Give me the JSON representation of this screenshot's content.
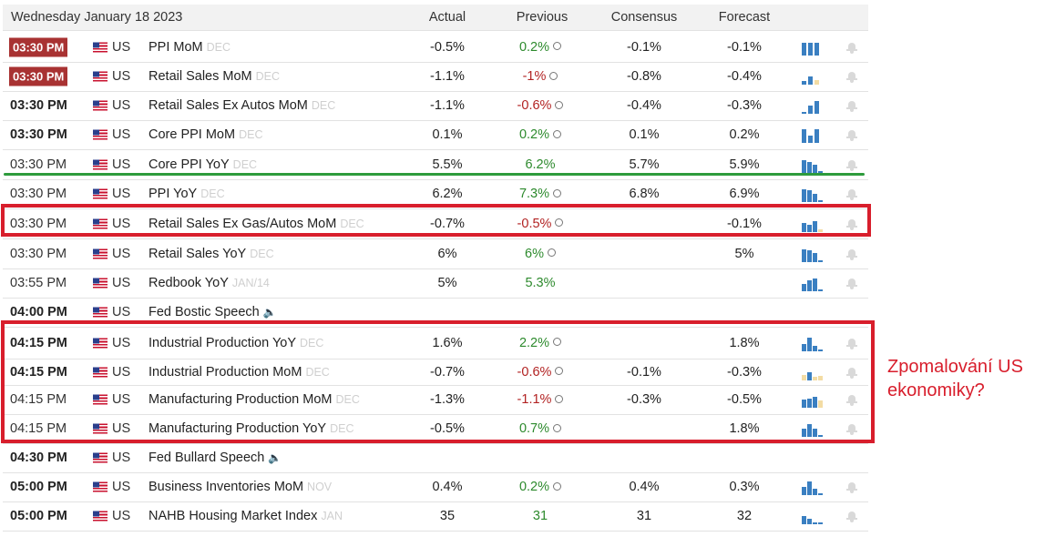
{
  "calendar": {
    "date": "Wednesday January 18 2023",
    "columns": {
      "actual": "Actual",
      "previous": "Previous",
      "consensus": "Consensus",
      "forecast": "Forecast"
    },
    "rows": [
      {
        "time": "03:30 PM",
        "time_style": "badge",
        "country": "US",
        "event": "PPI MoM",
        "period": "DEC",
        "actual": "-0.5%",
        "previous": "0.2%",
        "prev_color": "green",
        "revised": true,
        "consensus": "-0.1%",
        "forecast": "-0.1%",
        "spark": [
          0.85,
          0.85,
          0.85
        ],
        "spark_colors": [
          "#3a7fc1",
          "#3a7fc1",
          "#3a7fc1"
        ]
      },
      {
        "time": "03:30 PM",
        "time_style": "badge",
        "country": "US",
        "event": "Retail Sales MoM",
        "period": "DEC",
        "actual": "-1.1%",
        "previous": "-1%",
        "prev_color": "red",
        "revised": true,
        "consensus": "-0.8%",
        "forecast": "-0.4%",
        "spark": [
          0.25,
          0.55,
          0.3
        ],
        "spark_colors": [
          "#3a7fc1",
          "#3a7fc1",
          "#f3dca4"
        ]
      },
      {
        "time": "03:30 PM",
        "time_style": "bold",
        "country": "US",
        "event": "Retail Sales Ex Autos MoM",
        "period": "DEC",
        "actual": "-1.1%",
        "previous": "-0.6%",
        "prev_color": "red",
        "revised": true,
        "consensus": "-0.4%",
        "forecast": "-0.3%",
        "spark": [
          0.1,
          0.55,
          0.85
        ],
        "spark_colors": [
          "#3a7fc1",
          "#3a7fc1",
          "#3a7fc1"
        ]
      },
      {
        "time": "03:30 PM",
        "time_style": "bold",
        "country": "US",
        "event": "Core PPI MoM",
        "period": "DEC",
        "actual": "0.1%",
        "previous": "0.2%",
        "prev_color": "green",
        "revised": true,
        "consensus": "0.1%",
        "forecast": "0.2%",
        "spark": [
          0.9,
          0.45,
          0.9
        ],
        "spark_colors": [
          "#3a7fc1",
          "#3a7fc1",
          "#3a7fc1"
        ]
      },
      {
        "time": "03:30 PM",
        "time_style": "normal",
        "country": "US",
        "event": "Core PPI YoY",
        "period": "DEC",
        "actual": "5.5%",
        "previous": "6.2%",
        "prev_color": "green",
        "revised": false,
        "consensus": "5.7%",
        "forecast": "5.9%",
        "spark": [
          0.85,
          0.7,
          0.5,
          0.1
        ],
        "spark_colors": [
          "#3a7fc1",
          "#3a7fc1",
          "#3a7fc1",
          "#3a7fc1"
        ]
      },
      {
        "time": "03:30 PM",
        "time_style": "normal",
        "country": "US",
        "event": "PPI YoY",
        "period": "DEC",
        "actual": "6.2%",
        "previous": "7.3%",
        "prev_color": "green",
        "revised": true,
        "consensus": "6.8%",
        "forecast": "6.9%",
        "spark": [
          0.85,
          0.75,
          0.55,
          0.1
        ],
        "spark_colors": [
          "#3a7fc1",
          "#3a7fc1",
          "#3a7fc1",
          "#3a7fc1"
        ]
      },
      {
        "time": "03:30 PM",
        "time_style": "normal",
        "country": "US",
        "event": "Retail Sales Ex Gas/Autos MoM",
        "period": "DEC",
        "actual": "-0.7%",
        "previous": "-0.5%",
        "prev_color": "red",
        "revised": true,
        "consensus": "",
        "forecast": "-0.1%",
        "spark": [
          0.6,
          0.45,
          0.7,
          0.2
        ],
        "spark_colors": [
          "#3a7fc1",
          "#3a7fc1",
          "#3a7fc1",
          "#f3dca4"
        ]
      },
      {
        "time": "03:30 PM",
        "time_style": "normal",
        "country": "US",
        "event": "Retail Sales YoY",
        "period": "DEC",
        "actual": "6%",
        "previous": "6%",
        "prev_color": "green",
        "revised": true,
        "consensus": "",
        "forecast": "5%",
        "spark": [
          0.85,
          0.75,
          0.6,
          0.1
        ],
        "spark_colors": [
          "#3a7fc1",
          "#3a7fc1",
          "#3a7fc1",
          "#3a7fc1"
        ]
      },
      {
        "time": "03:55 PM",
        "time_style": "normal",
        "country": "US",
        "event": "Redbook YoY",
        "period": "JAN/14",
        "actual": "5%",
        "previous": "5.3%",
        "prev_color": "green",
        "revised": false,
        "consensus": "",
        "forecast": "",
        "spark": [
          0.45,
          0.7,
          0.85,
          0.1
        ],
        "spark_colors": [
          "#3a7fc1",
          "#3a7fc1",
          "#3a7fc1",
          "#3a7fc1"
        ]
      },
      {
        "time": "04:00 PM",
        "time_style": "bold",
        "country": "US",
        "event": "Fed Bostic Speech",
        "period": "",
        "speech": true,
        "actual": "",
        "previous": "",
        "prev_color": "",
        "revised": false,
        "consensus": "",
        "forecast": "",
        "spark": [],
        "spark_colors": []
      },
      {
        "time": "04:15 PM",
        "time_style": "bold",
        "country": "US",
        "event": "Industrial Production YoY",
        "period": "DEC",
        "actual": "1.6%",
        "previous": "2.2%",
        "prev_color": "green",
        "revised": true,
        "consensus": "",
        "forecast": "1.8%",
        "spark": [
          0.45,
          0.9,
          0.35,
          0.1
        ],
        "spark_colors": [
          "#3a7fc1",
          "#3a7fc1",
          "#3a7fc1",
          "#3a7fc1"
        ]
      },
      {
        "time": "04:15 PM",
        "time_style": "bold",
        "country": "US",
        "event": "Industrial Production MoM",
        "period": "DEC",
        "actual": "-0.7%",
        "previous": "-0.6%",
        "prev_color": "red",
        "revised": true,
        "consensus": "-0.1%",
        "forecast": "-0.3%",
        "spark": [
          0.35,
          0.55,
          0.25,
          0.3
        ],
        "spark_colors": [
          "#f3dca4",
          "#3a7fc1",
          "#f3dca4",
          "#f3dca4"
        ]
      },
      {
        "time": "04:15 PM",
        "time_style": "normal",
        "country": "US",
        "event": "Manufacturing Production MoM",
        "period": "DEC",
        "actual": "-1.3%",
        "previous": "-1.1%",
        "prev_color": "red",
        "revised": true,
        "consensus": "-0.3%",
        "forecast": "-0.5%",
        "spark": [
          0.55,
          0.6,
          0.7,
          0.45
        ],
        "spark_colors": [
          "#3a7fc1",
          "#3a7fc1",
          "#3a7fc1",
          "#f3dca4"
        ]
      },
      {
        "time": "04:15 PM",
        "time_style": "normal",
        "country": "US",
        "event": "Manufacturing Production YoY",
        "period": "DEC",
        "actual": "-0.5%",
        "previous": "0.7%",
        "prev_color": "green",
        "revised": true,
        "consensus": "",
        "forecast": "1.8%",
        "spark": [
          0.55,
          0.85,
          0.5,
          0.1
        ],
        "spark_colors": [
          "#3a7fc1",
          "#3a7fc1",
          "#3a7fc1",
          "#3a7fc1"
        ]
      },
      {
        "time": "04:30 PM",
        "time_style": "bold",
        "country": "US",
        "event": "Fed Bullard Speech",
        "period": "",
        "speech": true,
        "actual": "",
        "previous": "",
        "prev_color": "",
        "revised": false,
        "consensus": "",
        "forecast": "",
        "spark": [],
        "spark_colors": []
      },
      {
        "time": "05:00 PM",
        "time_style": "bold",
        "country": "US",
        "event": "Business Inventories MoM",
        "period": "NOV",
        "actual": "0.4%",
        "previous": "0.2%",
        "prev_color": "green",
        "revised": true,
        "consensus": "0.4%",
        "forecast": "0.3%",
        "spark": [
          0.5,
          0.9,
          0.4,
          0.1
        ],
        "spark_colors": [
          "#3a7fc1",
          "#3a7fc1",
          "#3a7fc1",
          "#3a7fc1"
        ]
      },
      {
        "time": "05:00 PM",
        "time_style": "bold",
        "country": "US",
        "event": "NAHB Housing Market Index",
        "period": "JAN",
        "actual": "35",
        "previous": "31",
        "prev_color": "green",
        "revised": false,
        "consensus": "31",
        "forecast": "32",
        "spark": [
          0.55,
          0.35,
          0.1,
          0.1
        ],
        "spark_colors": [
          "#3a7fc1",
          "#3a7fc1",
          "#3a7fc1",
          "#3a7fc1"
        ]
      }
    ]
  },
  "annotation": {
    "line1": "Zpomalování US",
    "line2": "ekonomiky?"
  },
  "colors": {
    "accent_red": "#d81e2c",
    "accent_green": "#2e9b3c",
    "badge": "#a83232",
    "bar_blue": "#3a7fc1",
    "bar_beige": "#f3dca4"
  }
}
